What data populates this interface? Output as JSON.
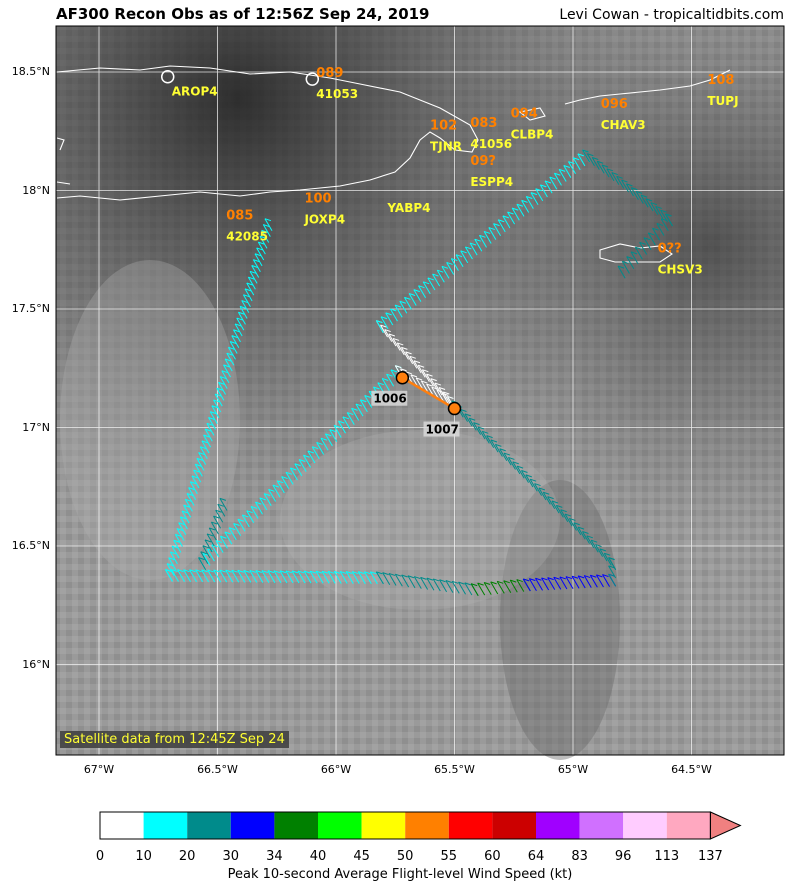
{
  "header": {
    "title": "AF300 Recon Obs as of 12:56Z Sep 24, 2019",
    "credit": "Levi Cowan - tropicaltidbits.com"
  },
  "map": {
    "lon_ticks": [
      "67°W",
      "66.5°W",
      "66°W",
      "65.5°W",
      "65°W",
      "64.5°W"
    ],
    "lat_ticks": [
      "18.5°N",
      "18°N",
      "17.5°N",
      "17°N",
      "16.5°N",
      "16°N"
    ],
    "satellite_note": "Satellite data from 12:45Z Sep 24",
    "stations": [
      {
        "id": "AROP4",
        "lon": -66.71,
        "lat": 18.48,
        "marker": "circle"
      },
      {
        "id": "41053",
        "lon": -66.1,
        "lat": 18.47,
        "marker": "circle",
        "value": "089"
      },
      {
        "id": "TJNR",
        "lon": -65.62,
        "lat": 18.25,
        "value": "102"
      },
      {
        "id": "41056",
        "lon": -65.45,
        "lat": 18.26,
        "value": "083"
      },
      {
        "id": "CLBP4",
        "lon": -65.28,
        "lat": 18.3,
        "value": "094"
      },
      {
        "id": "ESPP4",
        "lon": -65.45,
        "lat": 18.1,
        "value": "09?"
      },
      {
        "id": "CHAV3",
        "lon": -64.9,
        "lat": 18.34,
        "value": "096"
      },
      {
        "id": "TUPJ",
        "lon": -64.45,
        "lat": 18.44,
        "value": "108"
      },
      {
        "id": "YABP4",
        "lon": -65.8,
        "lat": 17.99
      },
      {
        "id": "JOXP4",
        "lon": -66.15,
        "lat": 17.94,
        "value": "100"
      },
      {
        "id": "42085",
        "lon": -66.48,
        "lat": 17.87,
        "value": "085"
      },
      {
        "id": "CHSV3",
        "lon": -64.66,
        "lat": 17.73,
        "value": "0??"
      }
    ],
    "pressure_obs": [
      {
        "value": "1006",
        "lon": -65.72,
        "lat": 17.21
      },
      {
        "value": "1007",
        "lon": -65.5,
        "lat": 17.08
      }
    ]
  },
  "colorbar": {
    "labels": [
      "0",
      "10",
      "20",
      "30",
      "34",
      "40",
      "45",
      "50",
      "55",
      "60",
      "64",
      "83",
      "96",
      "113",
      "137"
    ],
    "colors": [
      "#ffffff",
      "#00ffff",
      "#008b8b",
      "#0000ff",
      "#008000",
      "#00ff00",
      "#ffff00",
      "#ff8000",
      "#ff0000",
      "#cc0000",
      "#a000ff",
      "#d070ff",
      "#ffccff",
      "#ffa8c0",
      "#f08080"
    ],
    "title": "Peak 10-second Average Flight-level Wind Speed (kt)"
  },
  "track": {
    "legs": [
      {
        "from": [
          -66.27,
          17.83
        ],
        "to": [
          -66.69,
          16.35
        ],
        "color": "#00ffff"
      },
      {
        "from": [
          -66.69,
          16.35
        ],
        "to": [
          -65.8,
          16.34
        ],
        "color": "#00ffff"
      },
      {
        "from": [
          -65.8,
          16.34
        ],
        "to": [
          -65.4,
          16.29
        ],
        "color": "#008b8b"
      },
      {
        "from": [
          -65.4,
          16.29
        ],
        "to": [
          -65.18,
          16.31
        ],
        "color": "#008000"
      },
      {
        "from": [
          -65.18,
          16.31
        ],
        "to": [
          -64.82,
          16.33
        ],
        "color": "#0000ff"
      },
      {
        "from": [
          -64.82,
          16.33
        ],
        "to": [
          -64.82,
          16.4
        ],
        "color": "#008b8b"
      },
      {
        "from": [
          -64.82,
          16.4
        ],
        "to": [
          -65.5,
          17.08
        ],
        "color": "#008b8b"
      },
      {
        "from": [
          -65.5,
          17.08
        ],
        "to": [
          -65.8,
          17.4
        ],
        "color": "#ffffff"
      },
      {
        "from": [
          -65.8,
          17.4
        ],
        "to": [
          -64.93,
          18.12
        ],
        "color": "#00ffff"
      },
      {
        "from": [
          -64.93,
          18.12
        ],
        "to": [
          -64.58,
          17.85
        ],
        "color": "#008b8b"
      },
      {
        "from": [
          -64.58,
          17.85
        ],
        "to": [
          -64.78,
          17.63
        ],
        "color": "#008b8b"
      },
      {
        "from": [
          -66.55,
          16.4
        ],
        "to": [
          -65.72,
          17.21
        ],
        "color": "#00ffff"
      },
      {
        "from": [
          -65.72,
          17.21
        ],
        "to": [
          -65.5,
          17.08
        ],
        "color": "#ffffff"
      },
      {
        "from": [
          -66.55,
          16.4
        ],
        "to": [
          -66.46,
          16.65
        ],
        "color": "#008b8b"
      }
    ]
  }
}
